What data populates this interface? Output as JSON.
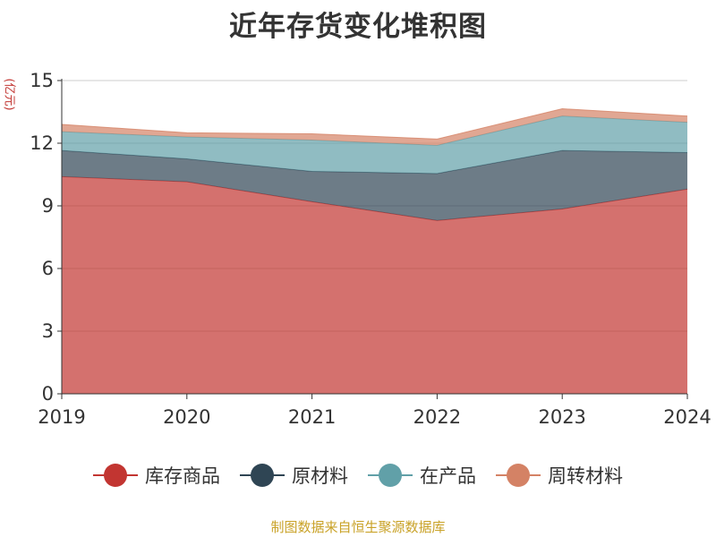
{
  "title": "近年存货变化堆积图",
  "source": "制图数据来自恒生聚源数据库",
  "chart_data": {
    "type": "area",
    "stacked": true,
    "title": "近年存货变化堆积图",
    "ylabel": "(亿元)",
    "xlabel": "",
    "x": [
      "2019",
      "2020",
      "2021",
      "2022",
      "2023",
      "2024"
    ],
    "ylim": [
      0,
      15
    ],
    "yticks": [
      0,
      3,
      6,
      9,
      12,
      15
    ],
    "grid": true,
    "legend_position": "bottom",
    "series": [
      {
        "name": "库存商品",
        "color": "#c23531",
        "values": [
          10.4,
          10.15,
          9.2,
          8.3,
          8.85,
          9.8
        ]
      },
      {
        "name": "原材料",
        "color": "#2f4554",
        "values": [
          1.25,
          1.1,
          1.45,
          2.25,
          2.8,
          1.75
        ]
      },
      {
        "name": "在产品",
        "color": "#61a0a8",
        "values": [
          0.9,
          1.05,
          1.5,
          1.35,
          1.65,
          1.45
        ]
      },
      {
        "name": "周转材料",
        "color": "#d48265",
        "values": [
          0.35,
          0.2,
          0.3,
          0.3,
          0.35,
          0.3
        ]
      }
    ]
  }
}
